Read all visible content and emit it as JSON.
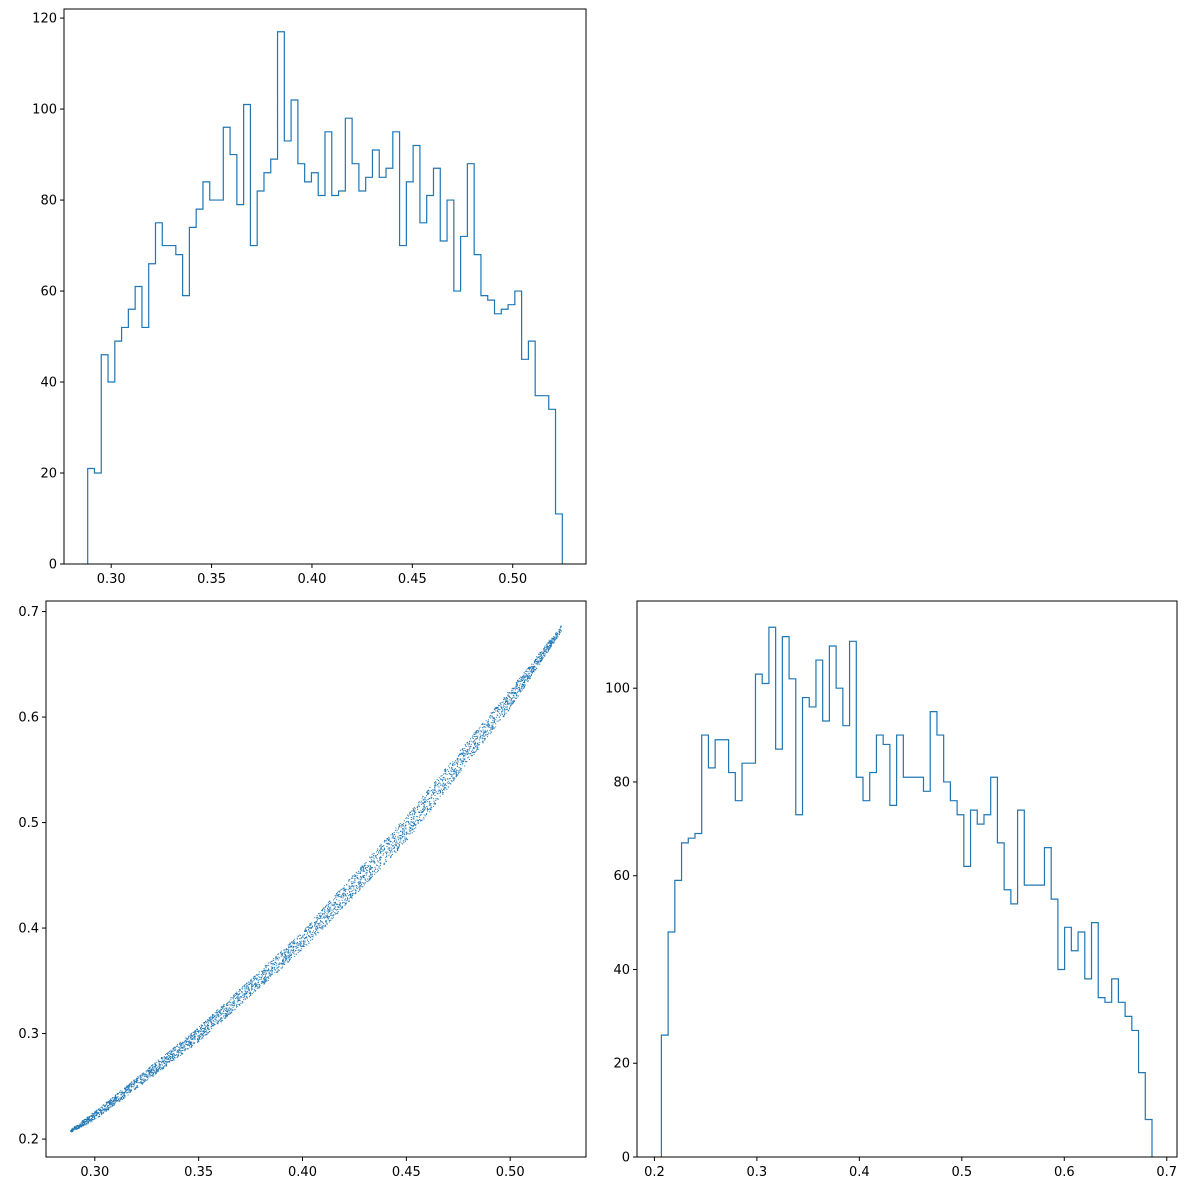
{
  "chart_data": [
    {
      "id": "hist-top-left",
      "type": "histogram",
      "title": "",
      "xlabel": "",
      "ylabel": "",
      "xlim": [
        0.2765,
        0.5365
      ],
      "ylim": [
        0,
        122
      ],
      "xticks": [
        0.3,
        0.35,
        0.4,
        0.45,
        0.5
      ],
      "xtick_labels": [
        "0.30",
        "0.35",
        "0.40",
        "0.45",
        "0.50"
      ],
      "yticks": [
        0,
        20,
        40,
        60,
        80,
        100,
        120
      ],
      "ytick_labels": [
        "0",
        "20",
        "40",
        "60",
        "80",
        "100",
        "120"
      ],
      "bin_start": 0.2883,
      "bin_end": 0.5247,
      "counts": [
        21,
        20,
        46,
        40,
        49,
        52,
        56,
        61,
        52,
        66,
        75,
        70,
        70,
        68,
        59,
        74,
        78,
        84,
        80,
        80,
        96,
        90,
        79,
        101,
        70,
        82,
        86,
        89,
        117,
        93,
        102,
        88,
        84,
        86,
        81,
        95,
        81,
        82,
        98,
        88,
        82,
        85,
        91,
        85,
        87,
        95,
        70,
        84,
        92,
        75,
        81,
        87,
        71,
        80,
        60,
        72,
        88,
        68,
        59,
        58,
        55,
        56,
        57,
        60,
        45,
        49,
        37,
        37,
        34,
        11
      ],
      "color": "#1f77b4"
    },
    {
      "id": "scatter-bottom-left",
      "type": "scatter",
      "title": "",
      "xlabel": "",
      "ylabel": "",
      "xlim": [
        0.2765,
        0.5365
      ],
      "ylim": [
        0.183,
        0.71
      ],
      "xticks": [
        0.3,
        0.35,
        0.4,
        0.45,
        0.5
      ],
      "xtick_labels": [
        "0.30",
        "0.35",
        "0.40",
        "0.45",
        "0.50"
      ],
      "yticks": [
        0.2,
        0.3,
        0.4,
        0.5,
        0.6,
        0.7
      ],
      "ytick_labels": [
        "0.2",
        "0.3",
        "0.4",
        "0.5",
        "0.6",
        "0.7"
      ],
      "band_upper": [
        [
          0.2883,
          0.209
        ],
        [
          0.3,
          0.226
        ],
        [
          0.35,
          0.306
        ],
        [
          0.4,
          0.397
        ],
        [
          0.45,
          0.506
        ],
        [
          0.5,
          0.626
        ],
        [
          0.5247,
          0.687
        ]
      ],
      "band_lower": [
        [
          0.2883,
          0.206
        ],
        [
          0.3,
          0.218
        ],
        [
          0.35,
          0.292
        ],
        [
          0.4,
          0.379
        ],
        [
          0.45,
          0.482
        ],
        [
          0.5,
          0.608
        ],
        [
          0.5247,
          0.681
        ]
      ],
      "color": "#1f77b4"
    },
    {
      "id": "hist-bottom-right",
      "type": "histogram",
      "title": "",
      "xlabel": "",
      "ylabel": "",
      "xlim": [
        0.183,
        0.71
      ],
      "ylim": [
        0,
        118.6
      ],
      "xticks": [
        0.2,
        0.3,
        0.4,
        0.5,
        0.6,
        0.7
      ],
      "xtick_labels": [
        "0.2",
        "0.3",
        "0.4",
        "0.5",
        "0.6",
        "0.7"
      ],
      "yticks": [
        0,
        20,
        40,
        60,
        80,
        100
      ],
      "ytick_labels": [
        "0",
        "20",
        "40",
        "60",
        "80",
        "100"
      ],
      "bin_start": 0.2068,
      "bin_end": 0.6856,
      "counts": [
        26,
        48,
        59,
        67,
        68,
        69,
        90,
        83,
        89,
        89,
        82,
        76,
        84,
        84,
        103,
        101,
        113,
        87,
        111,
        102,
        73,
        98,
        96,
        106,
        93,
        109,
        100,
        92,
        110,
        81,
        76,
        82,
        90,
        88,
        75,
        90,
        81,
        81,
        81,
        78,
        95,
        90,
        80,
        76,
        73,
        62,
        74,
        71,
        73,
        81,
        67,
        57,
        54,
        74,
        58,
        58,
        58,
        66,
        55,
        40,
        49,
        44,
        48,
        38,
        50,
        34,
        33,
        38,
        33,
        30,
        27,
        18,
        8
      ],
      "color": "#1f77b4"
    }
  ]
}
